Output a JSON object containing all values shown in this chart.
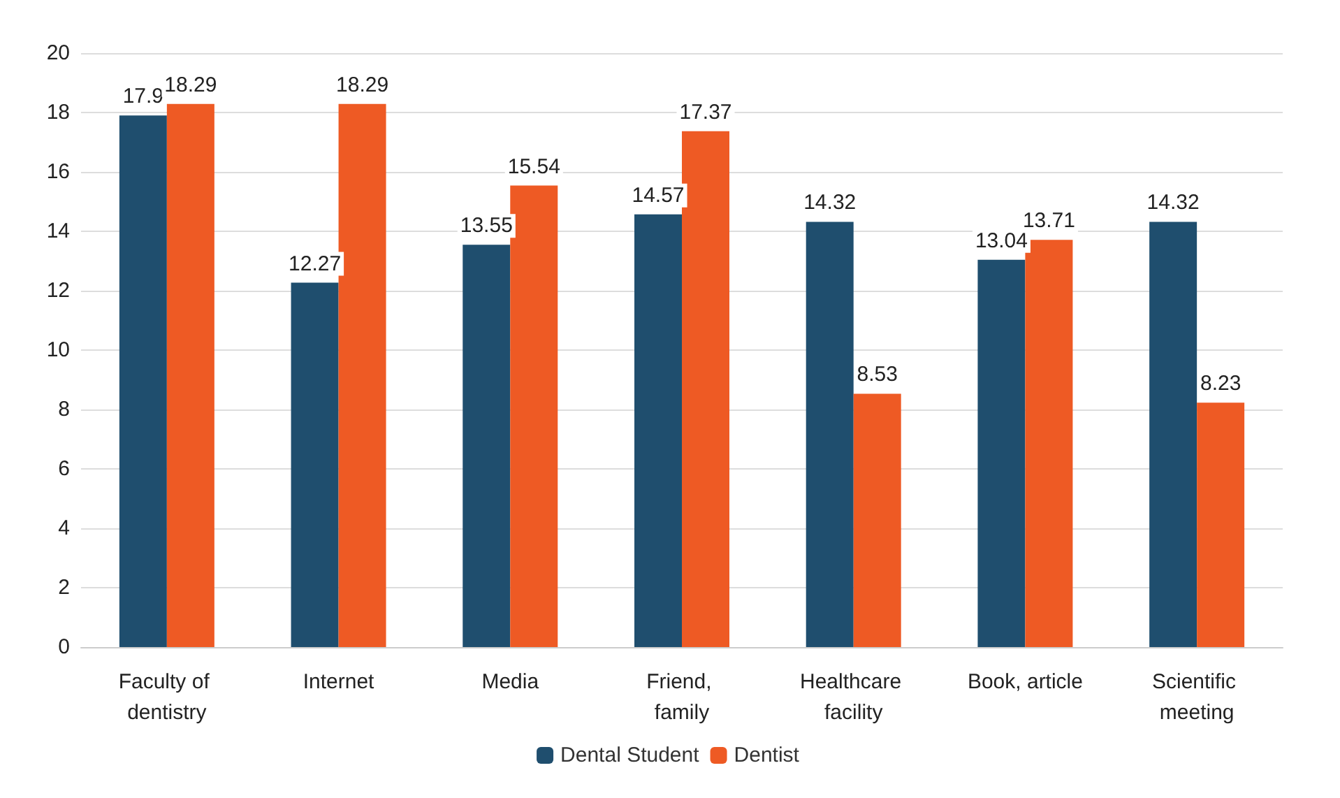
{
  "chart_data": {
    "type": "bar",
    "categories": [
      "Faculty of dentistry",
      "Internet",
      "Media",
      "Friend, family",
      "Healthcare facility",
      "Book, article",
      "Scientific meeting"
    ],
    "series": [
      {
        "name": "Dental Student",
        "color": "#1f4e6e",
        "values": [
          17.9,
          12.27,
          13.55,
          14.57,
          14.32,
          13.04,
          14.32
        ]
      },
      {
        "name": "Dentist",
        "color": "#ee5a24",
        "values": [
          18.29,
          18.29,
          15.54,
          17.37,
          8.53,
          13.71,
          8.23
        ]
      }
    ],
    "ylim": [
      0,
      20
    ],
    "yticks": [
      0,
      2,
      4,
      6,
      8,
      10,
      12,
      14,
      16,
      18,
      20
    ],
    "grid": "y",
    "legend": "bottom",
    "data_labels": true
  }
}
